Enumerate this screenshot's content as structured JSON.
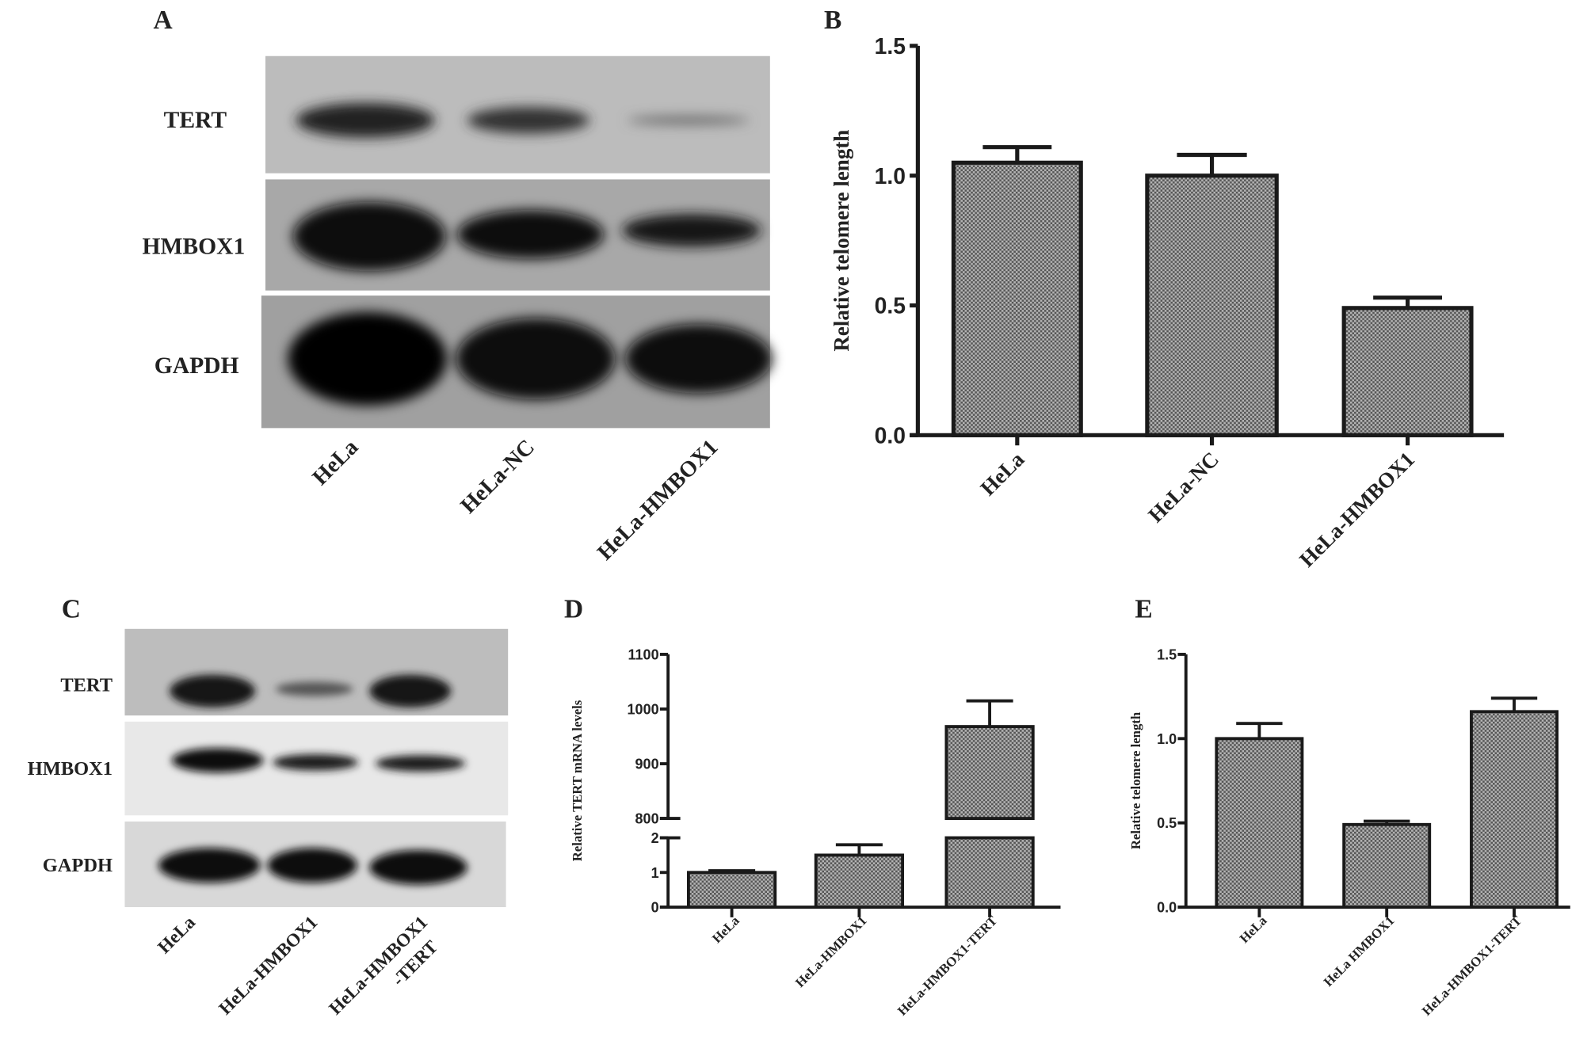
{
  "panels": {
    "A": {
      "label": "A",
      "rows": [
        "TERT",
        "HMBOX1",
        "GAPDH"
      ],
      "lanes": [
        "HeLa",
        "HeLa-NC",
        "HeLa-HMBOX1"
      ]
    },
    "C": {
      "label": "C",
      "rows": [
        "TERT",
        "HMBOX1",
        "GAPDH"
      ],
      "lanes": [
        "HeLa",
        "HeLa-HMBOX1",
        "HeLa-HMBOX1",
        "-TERT"
      ]
    },
    "B": {
      "label": "B"
    },
    "D": {
      "label": "D"
    },
    "E": {
      "label": "E"
    }
  },
  "colors": {
    "bar_fill": "#8a8a8a",
    "axis": "#1a1a1a",
    "blot_bg": "#c8c8c8",
    "band": "#111111"
  },
  "chart_data": [
    {
      "panel": "B",
      "type": "bar",
      "categories": [
        "HeLa",
        "HeLa-NC",
        "HeLa-HMBOX1"
      ],
      "values": [
        1.05,
        1.0,
        0.49
      ],
      "errors": [
        0.06,
        0.08,
        0.04
      ],
      "ylabel": "Relative telomere length",
      "ylim": [
        0,
        1.5
      ],
      "yticks": [
        "0.0",
        "0.5",
        "1.0",
        "1.5"
      ],
      "grid": false
    },
    {
      "panel": "D",
      "type": "bar",
      "categories": [
        "HeLa",
        "HeLa-HMBOX1",
        "HeLa-HMBOX1-TERT"
      ],
      "values": [
        1.0,
        1.5,
        968
      ],
      "errors": [
        0.05,
        0.3,
        47
      ],
      "ylabel": "Relative TERT mRNA  levels",
      "y_axis_break": {
        "lower": [
          0,
          2
        ],
        "upper": [
          800,
          1100
        ]
      },
      "yticks": [
        "0",
        "1",
        "2",
        "800",
        "900",
        "1000",
        "1100"
      ],
      "grid": false
    },
    {
      "panel": "E",
      "type": "bar",
      "categories": [
        "HeLa",
        "HeLa HMBOX1",
        "HeLa-HMBOX1-TERT"
      ],
      "values": [
        1.0,
        0.49,
        1.16
      ],
      "errors": [
        0.09,
        0.02,
        0.08
      ],
      "ylabel": "Relative  telomere  length",
      "ylim": [
        0,
        1.5
      ],
      "yticks": [
        "0.0",
        "0.5",
        "1.0",
        "1.5"
      ],
      "grid": false
    }
  ]
}
